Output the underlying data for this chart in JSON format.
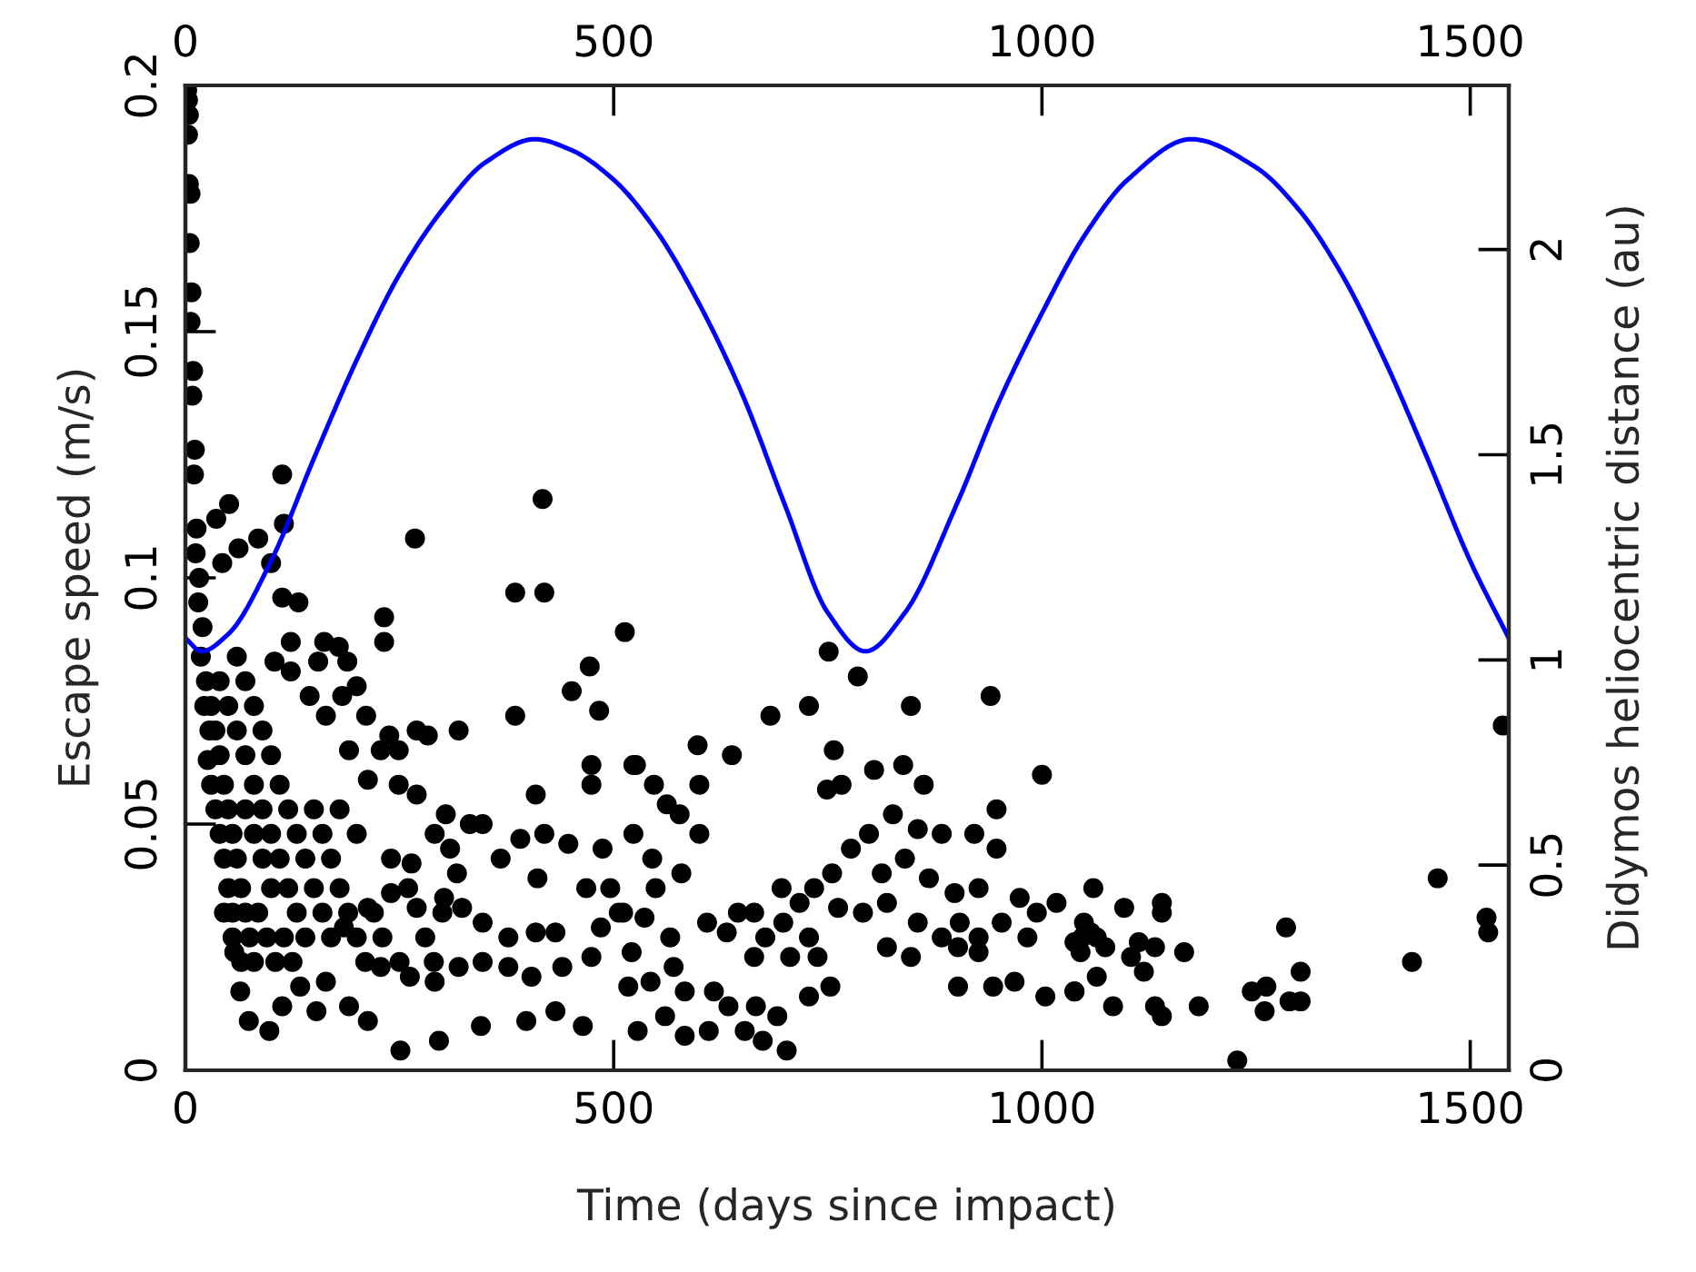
{
  "chart_data": {
    "type": "scatter",
    "xlabel": "Time (days since impact)",
    "ylabel": "Escape speed (m/s)",
    "y2label": "Didymos heliocentric distance (au)",
    "xlim": [
      0,
      1545
    ],
    "ylim": [
      0,
      0.2
    ],
    "y2lim": [
      0,
      2.4
    ],
    "x2lim": [
      0,
      1545
    ],
    "xticks": [
      0,
      500,
      1000,
      1500
    ],
    "x2ticks": [
      0,
      500,
      1000,
      1500
    ],
    "yticks": [
      0,
      0.05,
      0.1,
      0.15,
      0.2
    ],
    "y2ticks": [
      0,
      0.5,
      1,
      1.5,
      2
    ],
    "marker": "circle",
    "series": [
      {
        "type": "scatter",
        "color": "#000000",
        "x": [
          2,
          3,
          4,
          5,
          6,
          8,
          10,
          12,
          15,
          18,
          22,
          26,
          30,
          35,
          40,
          45,
          50,
          55,
          3,
          4,
          6,
          7,
          9,
          11,
          13,
          16,
          20,
          24,
          28,
          113,
          51,
          36,
          62,
          85,
          115,
          43,
          100,
          268,
          417,
          385,
          419,
          232,
          232,
          513,
          472,
          451,
          483,
          385,
          319,
          474,
          474,
          523,
          113,
          132,
          162,
          179,
          155,
          189,
          123,
          104,
          123,
          200,
          183,
          211,
          145,
          164,
          238,
          270,
          283,
          191,
          228,
          249,
          213,
          249,
          270,
          304,
          332,
          347,
          409,
          391,
          419,
          447,
          487,
          411,
          468,
          496,
          368,
          317,
          291,
          309,
          264,
          240,
          213,
          185,
          270,
          302,
          323,
          347,
          377,
          409,
          432,
          485,
          506,
          521,
          474,
          440,
          404,
          377,
          347,
          319,
          291,
          262,
          228,
          191,
          164,
          134,
          113,
          74,
          98,
          153,
          213,
          251,
          296,
          345,
          398,
          432,
          464,
          64,
          57,
          30,
          35,
          40,
          45,
          50,
          55,
          60,
          65,
          70,
          75,
          80,
          40,
          50,
          60,
          70,
          80,
          90,
          100,
          110,
          120,
          130,
          140,
          60,
          70,
          80,
          90,
          100,
          110,
          120,
          130,
          140,
          150,
          160,
          170,
          45,
          55,
          65,
          85,
          95,
          105,
          115,
          125,
          90,
          100,
          80,
          70,
          150,
          160,
          170,
          180,
          190,
          200,
          210,
          220,
          230,
          180,
          200,
          240,
          260,
          250,
          280,
          300,
          290,
          751,
          785,
          847,
          940,
          683,
          728,
          598,
          638,
          757,
          526,
          1000,
          804,
          838,
          862,
          749,
          766,
          547,
          600,
          562,
          577,
          947,
          600,
          523,
          798,
          826,
          855,
          883,
          921,
          947,
          777,
          755,
          813,
          840,
          868,
          898,
          926,
          545,
          579,
          549,
          696,
          734,
          762,
          791,
          819,
          855,
          883,
          904,
          926,
          953,
          974,
          1017,
          994,
          511,
          536,
          566,
          609,
          645,
          664,
          717,
          698,
          677,
          728,
          632,
          664,
          706,
          738,
          847,
          819,
          902,
          926,
          983,
          1047,
          570,
          543,
          517,
          583,
          617,
          634,
          666,
          728,
          753,
          902,
          943,
          968,
          1004,
          1038,
          528,
          583,
          611,
          653,
          674,
          691,
          702,
          560,
          1060,
          1049,
          1057,
          1038,
          1045,
          1064,
          1074,
          1096,
          1113,
          1104,
          1132,
          1140,
          1140,
          1166,
          1119,
          1064,
          1038,
          1083,
          1132,
          1140,
          1183,
          1228,
          1245,
          1262,
          1260,
          1289,
          1302,
          1302,
          1285,
          1432,
          1462,
          1519,
          1521,
          1538
        ],
        "values": [
          0.199,
          0.19,
          0.18,
          0.168,
          0.152,
          0.137,
          0.121,
          0.105,
          0.095,
          0.084,
          0.074,
          0.063,
          0.058,
          0.053,
          0.048,
          0.043,
          0.037,
          0.032,
          0.197,
          0.194,
          0.178,
          0.158,
          0.142,
          0.126,
          0.11,
          0.1,
          0.09,
          0.079,
          0.069,
          0.121,
          0.115,
          0.112,
          0.106,
          0.108,
          0.111,
          0.103,
          0.103,
          0.108,
          0.116,
          0.097,
          0.097,
          0.092,
          0.087,
          0.089,
          0.082,
          0.077,
          0.073,
          0.072,
          0.069,
          0.062,
          0.058,
          0.062,
          0.096,
          0.095,
          0.087,
          0.086,
          0.083,
          0.083,
          0.087,
          0.083,
          0.081,
          0.078,
          0.076,
          0.072,
          0.076,
          0.072,
          0.068,
          0.069,
          0.068,
          0.065,
          0.065,
          0.065,
          0.059,
          0.058,
          0.056,
          0.052,
          0.05,
          0.05,
          0.056,
          0.047,
          0.048,
          0.046,
          0.045,
          0.039,
          0.037,
          0.037,
          0.043,
          0.04,
          0.048,
          0.045,
          0.042,
          0.036,
          0.033,
          0.029,
          0.033,
          0.035,
          0.033,
          0.03,
          0.027,
          0.028,
          0.028,
          0.029,
          0.032,
          0.024,
          0.023,
          0.021,
          0.019,
          0.021,
          0.022,
          0.021,
          0.018,
          0.019,
          0.021,
          0.013,
          0.018,
          0.017,
          0.013,
          0.01,
          0.008,
          0.012,
          0.01,
          0.004,
          0.006,
          0.009,
          0.01,
          0.012,
          0.009,
          0.016,
          0.024,
          0.074,
          0.069,
          0.064,
          0.058,
          0.053,
          0.048,
          0.043,
          0.037,
          0.032,
          0.027,
          0.022,
          0.079,
          0.074,
          0.069,
          0.064,
          0.058,
          0.053,
          0.048,
          0.043,
          0.037,
          0.032,
          0.027,
          0.084,
          0.079,
          0.074,
          0.069,
          0.064,
          0.058,
          0.053,
          0.048,
          0.043,
          0.037,
          0.032,
          0.027,
          0.032,
          0.027,
          0.022,
          0.032,
          0.027,
          0.022,
          0.027,
          0.022,
          0.043,
          0.037,
          0.048,
          0.053,
          0.053,
          0.048,
          0.043,
          0.037,
          0.032,
          0.027,
          0.022,
          0.032,
          0.027,
          0.053,
          0.048,
          0.043,
          0.037,
          0.022,
          0.027,
          0.032,
          0.022,
          0.085,
          0.08,
          0.074,
          0.076,
          0.072,
          0.074,
          0.066,
          0.064,
          0.065,
          0.062,
          0.06,
          0.061,
          0.062,
          0.058,
          0.057,
          0.058,
          0.058,
          0.058,
          0.054,
          0.052,
          0.053,
          0.048,
          0.048,
          0.048,
          0.052,
          0.049,
          0.048,
          0.048,
          0.045,
          0.045,
          0.04,
          0.04,
          0.043,
          0.039,
          0.036,
          0.037,
          0.043,
          0.04,
          0.037,
          0.037,
          0.037,
          0.033,
          0.032,
          0.034,
          0.03,
          0.027,
          0.03,
          0.027,
          0.03,
          0.035,
          0.034,
          0.032,
          0.032,
          0.031,
          0.027,
          0.03,
          0.032,
          0.032,
          0.034,
          0.03,
          0.027,
          0.027,
          0.028,
          0.023,
          0.023,
          0.023,
          0.023,
          0.025,
          0.025,
          0.024,
          0.027,
          0.027,
          0.021,
          0.018,
          0.017,
          0.016,
          0.016,
          0.013,
          0.013,
          0.015,
          0.017,
          0.017,
          0.017,
          0.018,
          0.015,
          0.016,
          0.008,
          0.007,
          0.008,
          0.008,
          0.006,
          0.011,
          0.004,
          0.011,
          0.037,
          0.03,
          0.028,
          0.026,
          0.024,
          0.027,
          0.025,
          0.033,
          0.026,
          0.023,
          0.025,
          0.034,
          0.032,
          0.024,
          0.02,
          0.019,
          0.016,
          0.013,
          0.013,
          0.011,
          0.013,
          0.002,
          0.016,
          0.017,
          0.012,
          0.014,
          0.014,
          0.02,
          0.029,
          0.022,
          0.039,
          0.031,
          0.028,
          0.07
        ]
      },
      {
        "type": "line",
        "axis": "y2",
        "color": "#0000ff",
        "marker": "none",
        "x": [
          0,
          19,
          50,
          100,
          150,
          200,
          250,
          300,
          350,
          408,
          450,
          500,
          550,
          600,
          650,
          700,
          750,
          794,
          840,
          900,
          950,
          1000,
          1050,
          1100,
          1174,
          1250,
          1300,
          1350,
          1400,
          1450,
          1500,
          1545
        ],
        "values": [
          1.053,
          1.021,
          1.063,
          1.241,
          1.491,
          1.731,
          1.94,
          2.097,
          2.212,
          2.269,
          2.243,
          2.17,
          2.045,
          1.867,
          1.648,
          1.377,
          1.115,
          1.021,
          1.115,
          1.377,
          1.63,
          1.845,
          2.035,
          2.17,
          2.269,
          2.2,
          2.097,
          1.94,
          1.731,
          1.491,
          1.241,
          1.053
        ]
      }
    ]
  }
}
